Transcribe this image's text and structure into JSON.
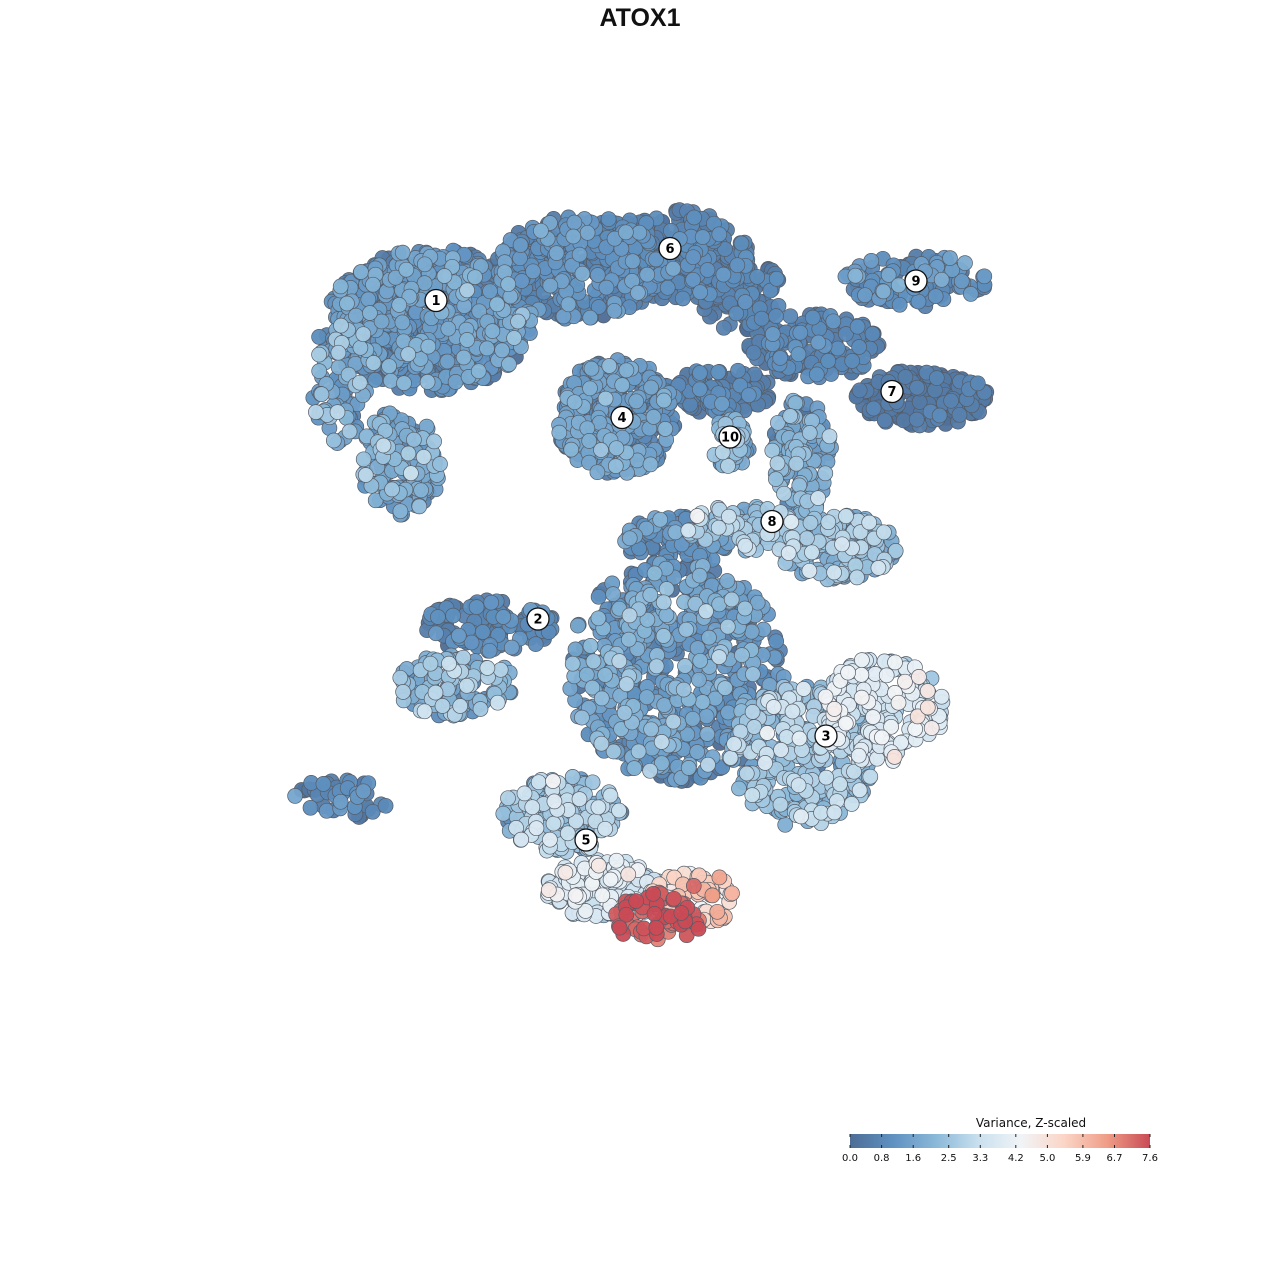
{
  "chart_data": {
    "type": "scatter",
    "title": "ATOX1",
    "xlabel": "",
    "ylabel": "",
    "grid": false,
    "xlim": [
      -40,
      40
    ],
    "ylim": [
      -40,
      40
    ],
    "color_scale": {
      "title": "Variance, Z-scaled",
      "min": 0.0,
      "max": 7.6,
      "ticks": [
        "0.0",
        "0.8",
        "1.6",
        "2.5",
        "3.3",
        "4.2",
        "5.0",
        "5.9",
        "6.7",
        "7.6"
      ],
      "palette": [
        "#4d6d96",
        "#5f91c1",
        "#8ab8d8",
        "#c9e0ee",
        "#f1f4f7",
        "#fbd5c6",
        "#ef9d86",
        "#c94a55"
      ],
      "placement": "bottom-right"
    },
    "clusters": [
      {
        "label": "1",
        "x": -17.0,
        "y": 21.5
      },
      {
        "label": "2",
        "x": -8.5,
        "y": -3.0
      },
      {
        "label": "3",
        "x": 15.5,
        "y": -12.0
      },
      {
        "label": "4",
        "x": -1.5,
        "y": 12.5
      },
      {
        "label": "5",
        "x": -4.5,
        "y": -20.0
      },
      {
        "label": "6",
        "x": 2.5,
        "y": 25.5
      },
      {
        "label": "7",
        "x": 21.0,
        "y": 14.5
      },
      {
        "label": "8",
        "x": 11.0,
        "y": 4.5
      },
      {
        "label": "9",
        "x": 23.0,
        "y": 23.0
      },
      {
        "label": "10",
        "x": 7.5,
        "y": 11.0
      }
    ],
    "regions": [
      {
        "cx": -17.5,
        "cy": 20.0,
        "rx": 8.5,
        "ry": 5.5,
        "n": 700,
        "v": 1.1,
        "vs": 0.55
      },
      {
        "cx": -25.0,
        "cy": 15.5,
        "rx": 2.5,
        "ry": 5.0,
        "n": 90,
        "v": 1.7,
        "vs": 0.6
      },
      {
        "cx": -20.0,
        "cy": 9.0,
        "rx": 3.5,
        "ry": 4.0,
        "n": 140,
        "v": 1.6,
        "vs": 0.6
      },
      {
        "cx": -5.0,
        "cy": 24.0,
        "rx": 7.0,
        "ry": 4.0,
        "n": 380,
        "v": 0.8,
        "vs": 0.45
      },
      {
        "cx": 3.0,
        "cy": 25.0,
        "rx": 6.0,
        "ry": 3.5,
        "n": 280,
        "v": 0.6,
        "vs": 0.35
      },
      {
        "cx": 8.5,
        "cy": 22.0,
        "rx": 3.5,
        "ry": 3.0,
        "n": 120,
        "v": 0.5,
        "vs": 0.3
      },
      {
        "cx": -2.0,
        "cy": 12.5,
        "rx": 5.0,
        "ry": 4.5,
        "n": 380,
        "v": 1.1,
        "vs": 0.55
      },
      {
        "cx": 6.5,
        "cy": 14.5,
        "rx": 4.5,
        "ry": 1.8,
        "n": 110,
        "v": 0.6,
        "vs": 0.3
      },
      {
        "cx": 7.5,
        "cy": 10.5,
        "rx": 1.6,
        "ry": 2.0,
        "n": 45,
        "v": 2.0,
        "vs": 0.5
      },
      {
        "cx": 14.5,
        "cy": 18.0,
        "rx": 5.5,
        "ry": 2.5,
        "n": 160,
        "v": 0.6,
        "vs": 0.3
      },
      {
        "cx": 23.5,
        "cy": 14.0,
        "rx": 5.5,
        "ry": 2.2,
        "n": 180,
        "v": 0.3,
        "vs": 0.25
      },
      {
        "cx": 23.0,
        "cy": 23.0,
        "rx": 6.0,
        "ry": 2.0,
        "n": 110,
        "v": 1.0,
        "vs": 0.5
      },
      {
        "cx": 13.5,
        "cy": 9.5,
        "rx": 2.5,
        "ry": 4.5,
        "n": 120,
        "v": 1.8,
        "vs": 0.6
      },
      {
        "cx": 16.5,
        "cy": 2.5,
        "rx": 5.0,
        "ry": 2.5,
        "n": 170,
        "v": 2.2,
        "vs": 0.6
      },
      {
        "cx": 8.5,
        "cy": 4.0,
        "rx": 4.5,
        "ry": 1.8,
        "n": 90,
        "v": 2.3,
        "vs": 0.7
      },
      {
        "cx": -12.5,
        "cy": -3.5,
        "rx": 5.5,
        "ry": 2.0,
        "n": 120,
        "v": 0.7,
        "vs": 0.35
      },
      {
        "cx": -15.5,
        "cy": -8.0,
        "rx": 5.0,
        "ry": 2.5,
        "n": 120,
        "v": 2.0,
        "vs": 0.6
      },
      {
        "cx": -25.0,
        "cy": -17.0,
        "rx": 4.0,
        "ry": 1.8,
        "n": 45,
        "v": 0.6,
        "vs": 0.4
      },
      {
        "cx": 3.0,
        "cy": -7.0,
        "rx": 9.0,
        "ry": 8.5,
        "n": 680,
        "v": 1.3,
        "vs": 0.65
      },
      {
        "cx": 3.0,
        "cy": 3.0,
        "rx": 4.5,
        "ry": 2.0,
        "n": 80,
        "v": 1.0,
        "vs": 0.5
      },
      {
        "cx": 13.5,
        "cy": -13.5,
        "rx": 6.0,
        "ry": 5.5,
        "n": 280,
        "v": 2.4,
        "vs": 0.6
      },
      {
        "cx": 20.0,
        "cy": -10.0,
        "rx": 5.5,
        "ry": 4.0,
        "n": 200,
        "v": 3.6,
        "vs": 0.55
      },
      {
        "cx": -6.5,
        "cy": -18.0,
        "rx": 5.0,
        "ry": 3.0,
        "n": 160,
        "v": 2.4,
        "vs": 0.7
      },
      {
        "cx": -3.0,
        "cy": -24.0,
        "rx": 5.0,
        "ry": 2.5,
        "n": 130,
        "v": 3.6,
        "vs": 0.5
      },
      {
        "cx": 4.5,
        "cy": -24.5,
        "rx": 3.8,
        "ry": 2.0,
        "n": 70,
        "v": 5.4,
        "vs": 0.6
      },
      {
        "cx": 1.5,
        "cy": -26.0,
        "rx": 3.8,
        "ry": 2.0,
        "n": 60,
        "v": 7.4,
        "vs": 0.25
      }
    ]
  }
}
